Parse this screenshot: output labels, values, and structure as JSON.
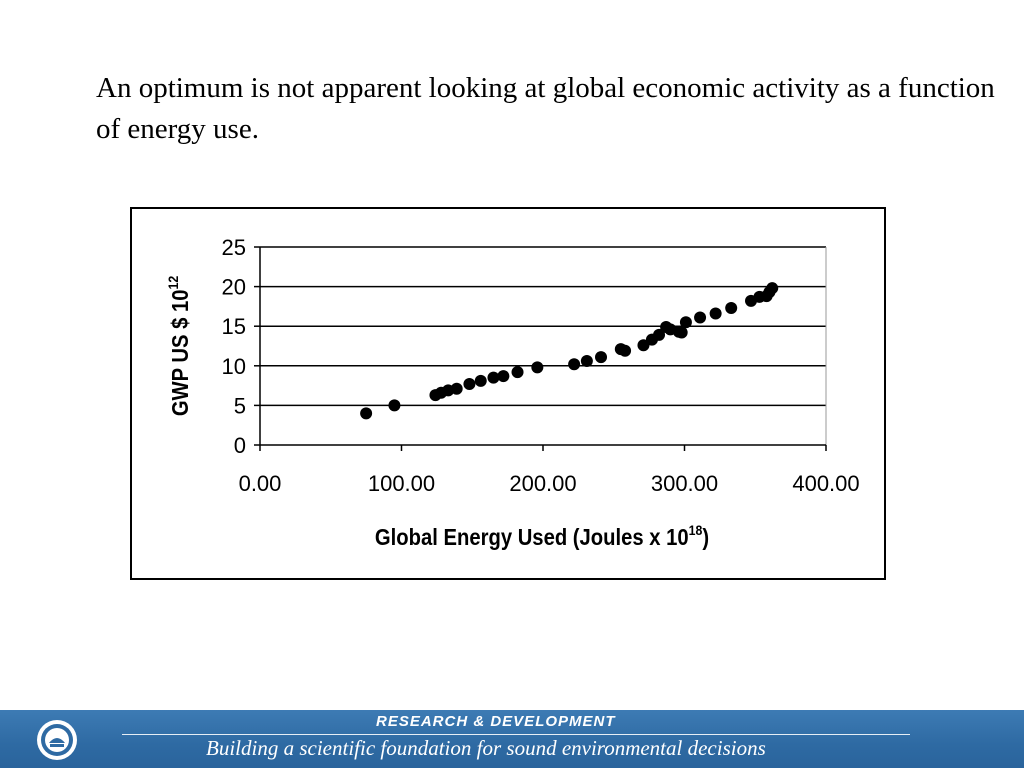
{
  "slide": {
    "intro_text": "An optimum is not apparent looking at global economic activity as a function of energy use."
  },
  "footer": {
    "line1": "RESEARCH &  DEVELOPMENT",
    "line2": "Building a scientific foundation for sound environmental decisions",
    "background_color": "#2e6aa3"
  },
  "chart_data": {
    "type": "scatter",
    "xlabel": "Global Energy Used (Joules x 10",
    "xlabel_superscript": "18",
    "xlabel_suffix": ")",
    "ylabel": "GWP US $ 10",
    "ylabel_superscript": "12",
    "xlim": [
      0,
      400
    ],
    "ylim": [
      0,
      25
    ],
    "x_ticks": [
      "0.00",
      "100.00",
      "200.00",
      "300.00",
      "400.00"
    ],
    "y_ticks": [
      "0",
      "5",
      "10",
      "15",
      "20",
      "25"
    ],
    "grid": "horizontal",
    "legend": "none",
    "marker_color": "#000000",
    "points": [
      {
        "x": 75,
        "y": 4.0
      },
      {
        "x": 95,
        "y": 5.0
      },
      {
        "x": 124,
        "y": 6.3
      },
      {
        "x": 128,
        "y": 6.6
      },
      {
        "x": 133,
        "y": 6.9
      },
      {
        "x": 139,
        "y": 7.1
      },
      {
        "x": 148,
        "y": 7.7
      },
      {
        "x": 156,
        "y": 8.1
      },
      {
        "x": 165,
        "y": 8.5
      },
      {
        "x": 172,
        "y": 8.7
      },
      {
        "x": 182,
        "y": 9.2
      },
      {
        "x": 196,
        "y": 9.8
      },
      {
        "x": 222,
        "y": 10.2
      },
      {
        "x": 231,
        "y": 10.6
      },
      {
        "x": 241,
        "y": 11.1
      },
      {
        "x": 255,
        "y": 12.1
      },
      {
        "x": 258,
        "y": 11.9
      },
      {
        "x": 271,
        "y": 12.6
      },
      {
        "x": 277,
        "y": 13.3
      },
      {
        "x": 282,
        "y": 13.9
      },
      {
        "x": 287,
        "y": 14.9
      },
      {
        "x": 290,
        "y": 14.6
      },
      {
        "x": 296,
        "y": 14.3
      },
      {
        "x": 298,
        "y": 14.2
      },
      {
        "x": 301,
        "y": 15.5
      },
      {
        "x": 311,
        "y": 16.1
      },
      {
        "x": 322,
        "y": 16.6
      },
      {
        "x": 333,
        "y": 17.3
      },
      {
        "x": 347,
        "y": 18.2
      },
      {
        "x": 353,
        "y": 18.7
      },
      {
        "x": 358,
        "y": 18.8
      },
      {
        "x": 360,
        "y": 19.3
      },
      {
        "x": 362,
        "y": 19.8
      }
    ]
  }
}
